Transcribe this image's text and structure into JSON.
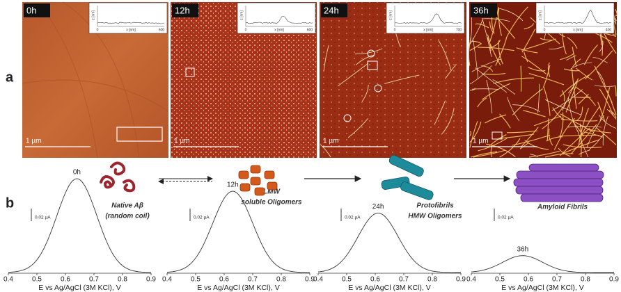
{
  "panel_a": {
    "label": "a",
    "images": [
      {
        "time": "0h",
        "scale_bar": "1 µm",
        "inset": {
          "y_label": "z [nm]",
          "x_label": "x [nm]",
          "x_min": 0,
          "x_max": 600
        }
      },
      {
        "time": "12h",
        "scale_bar": "1 µm",
        "inset": {
          "y_label": "z [nm]",
          "x_label": "x [nm]",
          "x_min": 0,
          "x_max": 600
        }
      },
      {
        "time": "24h",
        "scale_bar": "1 µm",
        "inset": {
          "y_label": "z [nm]",
          "x_label": "x [nm]",
          "x_min": 0,
          "x_max": 700
        }
      },
      {
        "time": "36h",
        "scale_bar": "1 µm",
        "inset": {
          "y_label": "z [nm]",
          "x_label": "x [nm]",
          "x_min": 0,
          "x_max": 400
        }
      }
    ]
  },
  "panel_b": {
    "label": "b",
    "x_axis_label": "E vs Ag/AgCl (3M KCl), V",
    "xlim": [
      0.4,
      0.9
    ],
    "xticks": [
      0.4,
      0.5,
      0.6,
      0.7,
      0.8,
      0.9
    ],
    "scale_bar": {
      "value": 0.02,
      "label": "0.02 µA"
    },
    "plots": [
      {
        "peak_label": "0h",
        "peak_potential": 0.64,
        "peak_current": 0.15,
        "species": [
          "Native Aβ",
          "(random coil)"
        ]
      },
      {
        "peak_label": "12h",
        "peak_potential": 0.63,
        "peak_current": 0.13,
        "species": [
          "LMW",
          "soluble Oligomers"
        ]
      },
      {
        "peak_label": "24h",
        "peak_potential": 0.61,
        "peak_current": 0.095,
        "species": [
          "Protofibrils",
          "HMW Oligomers"
        ]
      },
      {
        "peak_label": "36h",
        "peak_potential": 0.58,
        "peak_current": 0.027,
        "species": [
          "Amyloid Fibrils"
        ]
      }
    ]
  }
}
